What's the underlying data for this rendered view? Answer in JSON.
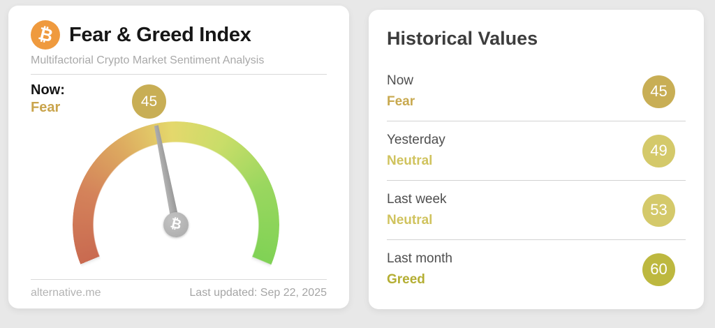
{
  "gauge_card": {
    "icon_glyph": "₿",
    "title": "Fear & Greed Index",
    "subtitle": "Multifactorial Crypto Market Sentiment Analysis",
    "now_label": "Now:",
    "now_classification": "Fear",
    "now_value": "45",
    "source": "alternative.me",
    "last_updated": "Last updated: Sep 22, 2025",
    "colors": {
      "bitcoin_orange": "#ef9a3e",
      "value_badge": "#c8ae55",
      "classification_text": "#c9a44c",
      "needle_gray": "#a5a5a5"
    }
  },
  "historical_card": {
    "title": "Historical Values",
    "rows": [
      {
        "period": "Now",
        "classification": "Fear",
        "value": "45",
        "badge_color": "#c8ae55",
        "text_color": "#c8a94f"
      },
      {
        "period": "Yesterday",
        "classification": "Neutral",
        "value": "49",
        "badge_color": "#d4c96a",
        "text_color": "#d0c35e"
      },
      {
        "period": "Last week",
        "classification": "Neutral",
        "value": "53",
        "badge_color": "#d4c96a",
        "text_color": "#d0c35e"
      },
      {
        "period": "Last month",
        "classification": "Greed",
        "value": "60",
        "badge_color": "#bdb83f",
        "text_color": "#b4ae33"
      }
    ]
  },
  "chart_data": {
    "type": "gauge",
    "title": "Fear & Greed Index",
    "value": 45,
    "classification": "Fear",
    "min": 0,
    "max": 100,
    "arc_span_degrees": 225,
    "color_scale": [
      "#c96a50",
      "#e4d86c",
      "#80d255"
    ],
    "historical": [
      {
        "period": "Now",
        "classification": "Fear",
        "value": 45
      },
      {
        "period": "Yesterday",
        "classification": "Neutral",
        "value": 49
      },
      {
        "period": "Last week",
        "classification": "Neutral",
        "value": 53
      },
      {
        "period": "Last month",
        "classification": "Greed",
        "value": 60
      }
    ]
  }
}
